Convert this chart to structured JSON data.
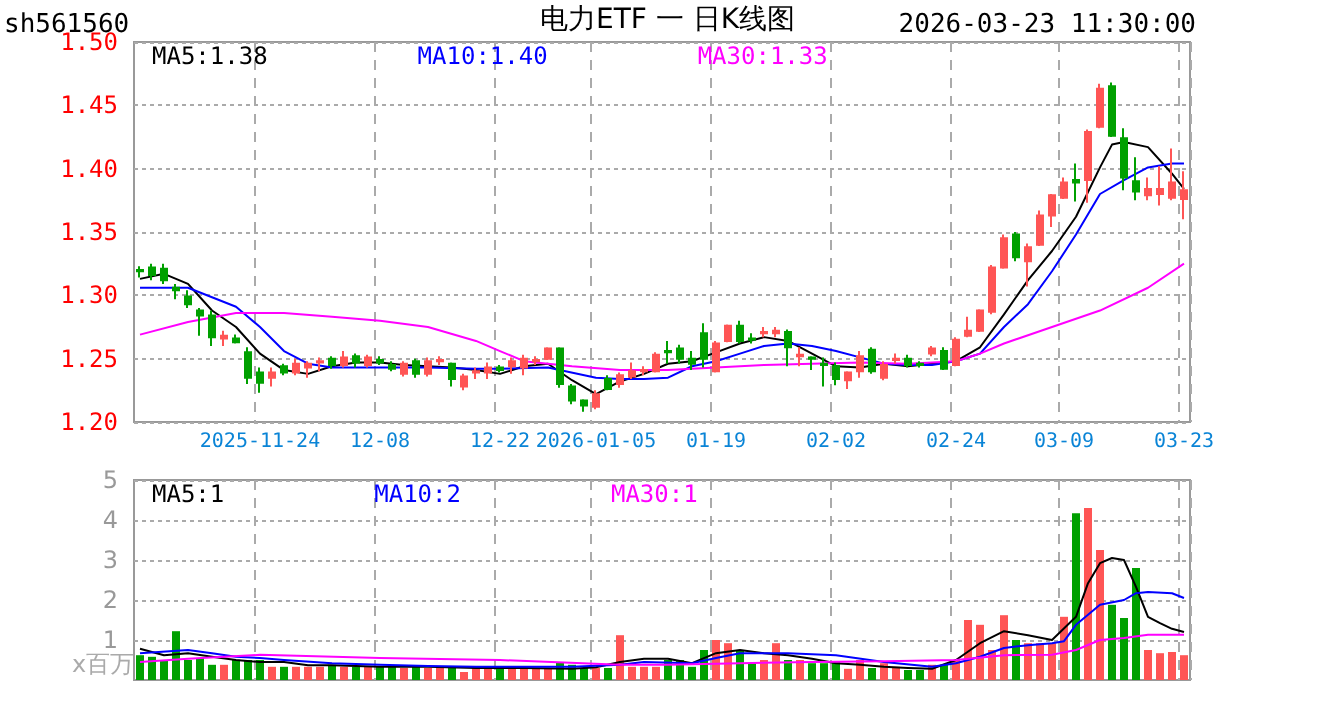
{
  "chart_data": [
    {
      "type": "candlestick",
      "title": "电力ETF 一 日K线图",
      "annotations": [
        "sh561560",
        "2026-03-23 11:30:00"
      ],
      "categories": [
        null,
        null,
        null,
        null,
        null,
        null,
        null,
        null,
        null,
        null,
        "2025-11-24",
        null,
        null,
        null,
        null,
        null,
        null,
        null,
        null,
        null,
        "12-08",
        null,
        null,
        null,
        null,
        null,
        null,
        null,
        null,
        null,
        "12-22",
        null,
        null,
        null,
        null,
        null,
        null,
        null,
        "2026-01-05",
        null,
        null,
        null,
        null,
        null,
        null,
        null,
        null,
        null,
        "01-19",
        null,
        null,
        null,
        null,
        null,
        null,
        null,
        null,
        null,
        "02-02",
        null,
        null,
        null,
        null,
        null,
        null,
        null,
        null,
        null,
        "02-24",
        null,
        null,
        null,
        null,
        null,
        null,
        null,
        null,
        "03-09",
        null,
        null,
        null,
        null,
        null,
        null,
        null,
        null,
        null,
        "03-23"
      ],
      "ohlc": [
        [
          1.32,
          1.323,
          1.314,
          1.319
        ],
        [
          1.322,
          1.325,
          1.312,
          1.316
        ],
        [
          1.321,
          1.325,
          1.309,
          1.312
        ],
        [
          1.306,
          1.309,
          1.297,
          1.304
        ],
        [
          1.299,
          1.304,
          1.29,
          1.293
        ],
        [
          1.288,
          1.29,
          1.268,
          1.284
        ],
        [
          1.284,
          1.288,
          1.26,
          1.267
        ],
        [
          1.266,
          1.272,
          1.26,
          1.268
        ],
        [
          1.266,
          1.269,
          1.262,
          1.263
        ],
        [
          1.255,
          1.259,
          1.23,
          1.235
        ],
        [
          1.239,
          1.243,
          1.223,
          1.231
        ],
        [
          1.235,
          1.243,
          1.228,
          1.239
        ],
        [
          1.244,
          1.246,
          1.237,
          1.239
        ],
        [
          1.239,
          1.25,
          1.237,
          1.246
        ],
        [
          1.243,
          1.248,
          1.235,
          1.246
        ],
        [
          1.247,
          1.251,
          1.24,
          1.248
        ],
        [
          1.25,
          1.252,
          1.242,
          1.245
        ],
        [
          1.245,
          1.256,
          1.243,
          1.251
        ],
        [
          1.252,
          1.254,
          1.243,
          1.247
        ],
        [
          1.245,
          1.253,
          1.243,
          1.251
        ],
        [
          1.249,
          1.252,
          1.245,
          1.247
        ],
        [
          1.245,
          1.248,
          1.24,
          1.242
        ],
        [
          1.238,
          1.248,
          1.236,
          1.246
        ],
        [
          1.248,
          1.25,
          1.235,
          1.238
        ],
        [
          1.238,
          1.251,
          1.236,
          1.248
        ],
        [
          1.248,
          1.252,
          1.245,
          1.249
        ],
        [
          1.246,
          1.247,
          1.228,
          1.234
        ],
        [
          1.228,
          1.238,
          1.225,
          1.236
        ],
        [
          1.239,
          1.243,
          1.234,
          1.24
        ],
        [
          1.239,
          1.247,
          1.234,
          1.243
        ],
        [
          1.243,
          1.245,
          1.239,
          1.241
        ],
        [
          1.244,
          1.251,
          1.238,
          1.248
        ],
        [
          1.243,
          1.253,
          1.237,
          1.25
        ],
        [
          1.248,
          1.252,
          1.245,
          1.249
        ],
        [
          1.25,
          1.259,
          1.249,
          1.258
        ],
        [
          1.258,
          1.259,
          1.227,
          1.23
        ],
        [
          1.228,
          1.23,
          1.214,
          1.217
        ],
        [
          1.217,
          1.218,
          1.208,
          1.213
        ],
        [
          1.212,
          1.225,
          1.21,
          1.222
        ],
        [
          1.234,
          1.237,
          1.225,
          1.226
        ],
        [
          1.23,
          1.239,
          1.227,
          1.237
        ],
        [
          1.236,
          1.247,
          1.234,
          1.24
        ],
        [
          1.24,
          1.244,
          1.237,
          1.241
        ],
        [
          1.24,
          1.255,
          1.239,
          1.253
        ],
        [
          1.256,
          1.264,
          1.246,
          1.255
        ],
        [
          1.258,
          1.261,
          1.246,
          1.25
        ],
        [
          1.25,
          1.256,
          1.241,
          1.246
        ],
        [
          1.27,
          1.278,
          1.243,
          1.25
        ],
        [
          1.24,
          1.264,
          1.239,
          1.262
        ],
        [
          1.264,
          1.277,
          1.263,
          1.276
        ],
        [
          1.276,
          1.28,
          1.262,
          1.264
        ],
        [
          1.266,
          1.27,
          1.262,
          1.265
        ],
        [
          1.27,
          1.275,
          1.267,
          1.271
        ],
        [
          1.27,
          1.275,
          1.267,
          1.272
        ],
        [
          1.271,
          1.273,
          1.244,
          1.259
        ],
        [
          1.252,
          1.259,
          1.244,
          1.253
        ],
        [
          1.251,
          1.252,
          1.241,
          1.25
        ],
        [
          1.246,
          1.251,
          1.228,
          1.245
        ],
        [
          1.244,
          1.247,
          1.229,
          1.234
        ],
        [
          1.233,
          1.24,
          1.226,
          1.239
        ],
        [
          1.24,
          1.256,
          1.235,
          1.252
        ],
        [
          1.257,
          1.259,
          1.238,
          1.24
        ],
        [
          1.235,
          1.248,
          1.233,
          1.245
        ],
        [
          1.249,
          1.254,
          1.246,
          1.25
        ],
        [
          1.25,
          1.253,
          1.243,
          1.245
        ],
        [
          1.246,
          1.248,
          1.243,
          1.245
        ],
        [
          1.254,
          1.26,
          1.252,
          1.258
        ],
        [
          1.256,
          1.259,
          1.241,
          1.242
        ],
        [
          1.245,
          1.267,
          1.244,
          1.265
        ],
        [
          1.268,
          1.283,
          1.267,
          1.272
        ],
        [
          1.272,
          1.289,
          1.271,
          1.288
        ],
        [
          1.287,
          1.324,
          1.285,
          1.322
        ],
        [
          1.322,
          1.348,
          1.321,
          1.345
        ],
        [
          1.348,
          1.35,
          1.327,
          1.33
        ],
        [
          1.327,
          1.341,
          1.307,
          1.338
        ],
        [
          1.34,
          1.367,
          1.339,
          1.363
        ],
        [
          1.363,
          1.38,
          1.354,
          1.379
        ],
        [
          1.377,
          1.393,
          1.376,
          1.389
        ],
        [
          1.391,
          1.404,
          1.374,
          1.389
        ],
        [
          1.391,
          1.431,
          1.373,
          1.429
        ],
        [
          1.433,
          1.467,
          1.432,
          1.463
        ],
        [
          1.465,
          1.468,
          1.425,
          1.426
        ],
        [
          1.424,
          1.432,
          1.383,
          1.393
        ],
        [
          1.39,
          1.409,
          1.375,
          1.382
        ],
        [
          1.379,
          1.393,
          1.375,
          1.384
        ],
        [
          1.38,
          1.402,
          1.371,
          1.384
        ],
        [
          1.377,
          1.416,
          1.375,
          1.389
        ],
        [
          1.376,
          1.398,
          1.36,
          1.383
        ]
      ],
      "colors": [
        "#00a000",
        "#00a000",
        "#00a000",
        "#00a000",
        "#00a000",
        "#00a000",
        "#00a000",
        "#ff5555",
        "#00a000",
        "#00a000",
        "#00a000",
        "#ff5555",
        "#00a000",
        "#ff5555",
        "#ff5555",
        "#ff5555",
        "#00a000",
        "#ff5555",
        "#00a000",
        "#ff5555",
        "#00a000",
        "#00a000",
        "#ff5555",
        "#00a000",
        "#ff5555",
        "#ff5555",
        "#00a000",
        "#ff5555",
        "#ff5555",
        "#ff5555",
        "#00a000",
        "#ff5555",
        "#ff5555",
        "#ff5555",
        "#ff5555",
        "#00a000",
        "#00a000",
        "#00a000",
        "#ff5555",
        "#00a000",
        "#ff5555",
        "#ff5555",
        "#ff5555",
        "#ff5555",
        "#00a000",
        "#00a000",
        "#00a000",
        "#00a000",
        "#ff5555",
        "#ff5555",
        "#00a000",
        "#00a000",
        "#ff5555",
        "#ff5555",
        "#00a000",
        "#ff5555",
        "#00a000",
        "#00a000",
        "#00a000",
        "#ff5555",
        "#ff5555",
        "#00a000",
        "#ff5555",
        "#ff5555",
        "#00a000",
        "#00a000",
        "#ff5555",
        "#00a000",
        "#ff5555",
        "#ff5555",
        "#ff5555",
        "#ff5555",
        "#ff5555",
        "#00a000",
        "#ff5555",
        "#ff5555",
        "#ff5555",
        "#ff5555",
        "#00a000",
        "#ff5555",
        "#ff5555",
        "#00a000",
        "#00a000",
        "#00a000",
        "#ff5555",
        "#ff5555",
        "#ff5555",
        "#ff5555"
      ],
      "series": [
        {
          "name": "MA5:1.38",
          "type": "line",
          "color": "#000000",
          "values": [
            1.313,
            null,
            1.317,
            null,
            1.309,
            null,
            1.288,
            null,
            1.275,
            null,
            1.254,
            null,
            1.241,
            null,
            1.238,
            null,
            1.244,
            null,
            1.247,
            null,
            1.247,
            null,
            1.245,
            null,
            null,
            null,
            1.243,
            null,
            1.241,
            null,
            1.238,
            null,
            1.244,
            null,
            1.246,
            null,
            1.233,
            null,
            1.222,
            null,
            1.232,
            null,
            1.238,
            null,
            1.246,
            null,
            1.248,
            null,
            1.255,
            null,
            1.262,
            null,
            1.267,
            null,
            1.264,
            null,
            1.254,
            null,
            1.244,
            null,
            1.243,
            null,
            1.246,
            null,
            1.244,
            null,
            null,
            null,
            1.248,
            null,
            1.259,
            null,
            1.285,
            null,
            1.312,
            null,
            1.335,
            null,
            1.362,
            null,
            1.401,
            1.419,
            1.421,
            null,
            1.417,
            null,
            1.396,
            1.384
          ]
        },
        {
          "name": "MA10:1.40",
          "type": "line",
          "color": "#0000ff",
          "values": [
            1.306,
            null,
            null,
            null,
            1.306,
            null,
            null,
            null,
            1.291,
            null,
            1.275,
            null,
            1.256,
            null,
            1.246,
            null,
            1.243,
            null,
            null,
            null,
            1.243,
            null,
            null,
            null,
            1.243,
            null,
            null,
            null,
            1.242,
            null,
            1.242,
            null,
            null,
            null,
            1.243,
            null,
            null,
            null,
            1.235,
            null,
            1.234,
            null,
            1.234,
            null,
            1.235,
            null,
            1.244,
            null,
            1.248,
            null,
            1.254,
            null,
            1.26,
            null,
            1.262,
            null,
            1.26,
            null,
            1.256,
            null,
            1.251,
            null,
            1.246,
            null,
            1.245,
            null,
            1.245,
            null,
            1.248,
            null,
            1.254,
            null,
            1.275,
            null,
            1.293,
            null,
            1.319,
            null,
            1.348,
            null,
            1.38,
            null,
            1.391,
            null,
            1.401,
            null,
            1.404,
            1.404
          ]
        },
        {
          "name": "MA30:1.33",
          "type": "line",
          "color": "#ff00ff",
          "values": [
            1.269,
            null,
            null,
            null,
            1.279,
            null,
            null,
            null,
            1.286,
            null,
            null,
            null,
            1.286,
            null,
            null,
            null,
            1.283,
            null,
            null,
            null,
            1.28,
            null,
            null,
            null,
            1.275,
            null,
            null,
            null,
            1.264,
            null,
            1.256,
            null,
            1.248,
            null,
            null,
            null,
            1.244,
            null,
            null,
            null,
            1.241,
            null,
            null,
            null,
            1.241,
            null,
            null,
            null,
            1.243,
            null,
            null,
            null,
            1.245,
            null,
            null,
            null,
            1.246,
            null,
            null,
            null,
            1.247,
            null,
            null,
            null,
            1.246,
            null,
            null,
            null,
            1.248,
            null,
            1.254,
            null,
            1.262,
            null,
            null,
            null,
            1.275,
            null,
            null,
            null,
            1.288,
            null,
            null,
            null,
            1.306,
            null,
            null,
            1.325
          ]
        }
      ],
      "ylim": [
        1.2,
        1.5
      ],
      "yticks": [
        {
          "value": 1.2,
          "label": "1.20"
        },
        {
          "value": 1.25,
          "label": "1.25"
        },
        {
          "value": 1.3,
          "label": "1.30"
        },
        {
          "value": 1.35,
          "label": "1.35"
        },
        {
          "value": 1.4,
          "label": "1.40"
        },
        {
          "value": 1.45,
          "label": "1.45"
        },
        {
          "value": 1.5,
          "label": "1.50"
        }
      ],
      "grid": true,
      "legend": "top",
      "marker": "none"
    },
    {
      "type": "bar",
      "ylabel": "x百万",
      "categories": [
        null,
        null,
        null,
        null,
        null,
        null,
        null,
        null,
        null,
        null,
        null,
        null,
        null,
        null,
        null,
        null,
        null,
        null,
        null,
        null,
        null,
        null,
        null,
        null,
        null,
        null,
        null,
        null,
        null,
        null,
        null,
        null,
        null,
        null,
        null,
        null,
        null,
        null,
        null,
        null,
        null,
        null,
        null,
        null,
        null,
        null,
        null,
        null,
        null,
        null,
        null,
        null,
        null,
        null,
        null,
        null,
        null,
        null,
        null,
        null,
        null,
        null,
        null,
        null,
        null,
        null,
        null,
        null,
        null,
        null,
        null,
        null,
        null,
        null,
        null,
        null,
        null,
        null,
        null,
        null,
        null,
        null,
        null,
        null,
        null,
        null,
        null,
        null
      ],
      "values": [
        0.62,
        0.58,
        0.5,
        1.22,
        0.5,
        0.55,
        0.38,
        0.38,
        0.5,
        0.5,
        0.5,
        0.33,
        0.33,
        0.33,
        0.33,
        0.33,
        0.38,
        0.33,
        0.33,
        0.33,
        0.33,
        0.33,
        0.3,
        0.33,
        0.3,
        0.33,
        0.33,
        0.2,
        0.33,
        0.3,
        0.3,
        0.3,
        0.3,
        0.3,
        0.3,
        0.45,
        0.38,
        0.3,
        0.3,
        0.3,
        1.12,
        0.33,
        0.33,
        0.33,
        0.5,
        0.5,
        0.33,
        0.75,
        1.0,
        0.92,
        0.75,
        0.42,
        0.5,
        0.92,
        0.5,
        0.5,
        0.42,
        0.42,
        0.45,
        0.28,
        0.5,
        0.3,
        0.42,
        0.33,
        0.25,
        0.25,
        0.38,
        0.38,
        0.5,
        1.5,
        1.38,
        0.75,
        1.62,
        1.0,
        0.92,
        0.92,
        0.92,
        1.58,
        4.17,
        4.3,
        3.25,
        1.88,
        1.55,
        2.8,
        0.75,
        0.67,
        0.7,
        0.62
      ],
      "colors": [
        "#00a000",
        "#00a000",
        "#00a000",
        "#00a000",
        "#00a000",
        "#00a000",
        "#00a000",
        "#ff5555",
        "#00a000",
        "#00a000",
        "#00a000",
        "#ff5555",
        "#00a000",
        "#ff5555",
        "#ff5555",
        "#ff5555",
        "#00a000",
        "#ff5555",
        "#00a000",
        "#ff5555",
        "#00a000",
        "#00a000",
        "#ff5555",
        "#00a000",
        "#ff5555",
        "#ff5555",
        "#00a000",
        "#ff5555",
        "#ff5555",
        "#ff5555",
        "#00a000",
        "#ff5555",
        "#ff5555",
        "#ff5555",
        "#ff5555",
        "#00a000",
        "#00a000",
        "#00a000",
        "#ff5555",
        "#00a000",
        "#ff5555",
        "#ff5555",
        "#ff5555",
        "#ff5555",
        "#00a000",
        "#00a000",
        "#00a000",
        "#00a000",
        "#ff5555",
        "#ff5555",
        "#00a000",
        "#00a000",
        "#ff5555",
        "#ff5555",
        "#00a000",
        "#ff5555",
        "#00a000",
        "#00a000",
        "#00a000",
        "#ff5555",
        "#ff5555",
        "#00a000",
        "#ff5555",
        "#ff5555",
        "#00a000",
        "#00a000",
        "#ff5555",
        "#00a000",
        "#ff5555",
        "#ff5555",
        "#ff5555",
        "#ff5555",
        "#ff5555",
        "#00a000",
        "#ff5555",
        "#ff5555",
        "#ff5555",
        "#ff5555",
        "#00a000",
        "#ff5555",
        "#ff5555",
        "#00a000",
        "#00a000",
        "#00a000",
        "#ff5555",
        "#ff5555",
        "#ff5555",
        "#ff5555"
      ],
      "series": [
        {
          "name": "MA5:1",
          "type": "line",
          "color": "#000000",
          "values": [
            0.78,
            null,
            0.62,
            null,
            0.67,
            null,
            0.58,
            null,
            0.5,
            null,
            0.45,
            null,
            0.45,
            null,
            0.37,
            null,
            0.37,
            null,
            null,
            null,
            0.33,
            null,
            null,
            null,
            0.33,
            null,
            null,
            null,
            0.3,
            null,
            null,
            null,
            0.3,
            null,
            null,
            null,
            0.28,
            null,
            0.32,
            null,
            0.45,
            null,
            0.53,
            null,
            0.53,
            null,
            0.42,
            null,
            0.67,
            null,
            0.75,
            null,
            0.67,
            null,
            0.62,
            null,
            0.53,
            null,
            0.42,
            null,
            0.38,
            null,
            0.33,
            null,
            0.3,
            null,
            0.28,
            null,
            0.5,
            null,
            0.92,
            null,
            1.22,
            null,
            1.12,
            null,
            1.0,
            null,
            1.58,
            2.42,
            2.92,
            3.05,
            3.0,
            2.33,
            1.58,
            1.42,
            1.28,
            1.2
          ]
        },
        {
          "name": "MA10:2",
          "type": "line",
          "color": "#0000ff",
          "values": [
            0.67,
            null,
            null,
            null,
            0.75,
            null,
            0.67,
            null,
            0.58,
            null,
            0.55,
            null,
            0.5,
            null,
            null,
            null,
            0.42,
            null,
            null,
            null,
            0.38,
            null,
            null,
            null,
            0.35,
            null,
            null,
            null,
            0.33,
            null,
            null,
            null,
            0.33,
            null,
            null,
            null,
            0.33,
            null,
            null,
            null,
            0.38,
            null,
            0.45,
            null,
            null,
            null,
            0.42,
            null,
            0.55,
            null,
            0.67,
            null,
            null,
            null,
            0.67,
            null,
            null,
            null,
            0.62,
            null,
            null,
            null,
            0.45,
            null,
            null,
            null,
            0.33,
            null,
            0.42,
            null,
            0.58,
            null,
            0.8,
            null,
            0.87,
            null,
            0.92,
            0.97,
            1.38,
            null,
            1.88,
            null,
            2.0,
            2.17,
            2.2,
            null,
            2.17,
            2.05
          ]
        },
        {
          "name": "MA30:1",
          "type": "line",
          "color": "#ff00ff",
          "values": [
            0.45,
            null,
            null,
            null,
            0.53,
            null,
            null,
            null,
            null,
            null,
            0.63,
            null,
            null,
            null,
            null,
            null,
            null,
            null,
            null,
            null,
            0.55,
            null,
            null,
            null,
            null,
            null,
            null,
            null,
            null,
            null,
            0.5,
            null,
            null,
            null,
            null,
            null,
            null,
            null,
            null,
            null,
            0.38,
            null,
            null,
            null,
            0.38,
            null,
            null,
            null,
            null,
            null,
            0.42,
            null,
            null,
            null,
            null,
            null,
            0.45,
            null,
            null,
            null,
            null,
            null,
            0.47,
            null,
            null,
            null,
            null,
            null,
            0.5,
            null,
            null,
            null,
            0.62,
            null,
            null,
            null,
            0.63,
            null,
            0.75,
            null,
            1.0,
            null,
            1.05,
            null,
            1.13,
            null,
            null,
            1.13
          ]
        }
      ],
      "ylim": [
        0,
        5
      ],
      "yticks": [
        1,
        2,
        3,
        4,
        5
      ],
      "grid": true,
      "legend": "top",
      "marker": "none",
      "tick_labels": "y"
    }
  ]
}
